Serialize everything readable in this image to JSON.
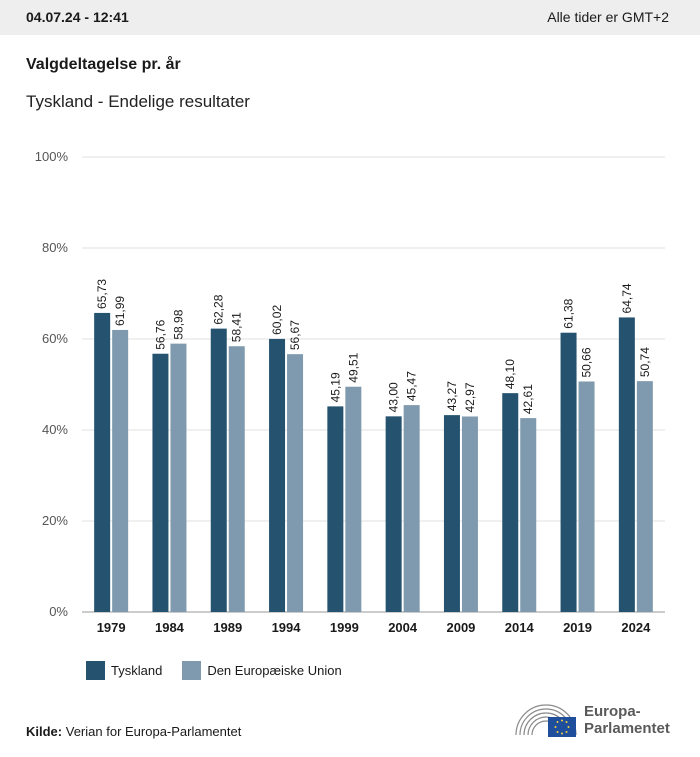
{
  "header": {
    "timestamp": "04.07.24 - 12:41",
    "timezone": "Alle tider er GMT+2"
  },
  "title": "Valgdeltagelse pr. år",
  "subtitle": "Tyskland - Endelige resultater",
  "colors": {
    "series1": "#25536f",
    "series2": "#7f9aae"
  },
  "chart_data": {
    "type": "bar",
    "categories": [
      "1979",
      "1984",
      "1989",
      "1994",
      "1999",
      "2004",
      "2009",
      "2014",
      "2019",
      "2024"
    ],
    "series": [
      {
        "name": "Tyskland",
        "values": [
          65.73,
          56.76,
          62.28,
          60.02,
          45.19,
          43.0,
          43.27,
          48.1,
          61.38,
          64.74
        ],
        "labels": [
          "65,73",
          "56,76",
          "62,28",
          "60,02",
          "45,19",
          "43,00",
          "43,27",
          "48,10",
          "61,38",
          "64,74"
        ]
      },
      {
        "name": "Den Europæiske Union",
        "values": [
          61.99,
          58.98,
          58.41,
          56.67,
          49.51,
          45.47,
          42.97,
          42.61,
          50.66,
          50.74
        ],
        "labels": [
          "61,99",
          "58,98",
          "58,41",
          "56,67",
          "49,51",
          "45,47",
          "42,97",
          "42,61",
          "50,66",
          "50,74"
        ]
      }
    ],
    "ylim": [
      0,
      100
    ],
    "yticks": [
      0,
      20,
      40,
      60,
      80,
      100
    ],
    "ytick_labels": [
      "0%",
      "20%",
      "40%",
      "60%",
      "80%",
      "100%"
    ],
    "grid": true,
    "legend": "bottom-left"
  },
  "source": {
    "label": "Kilde:",
    "text": "Verian for Europa-Parlamentet"
  },
  "logo": {
    "line1": "Europa-",
    "line2": "Parlamentet"
  }
}
